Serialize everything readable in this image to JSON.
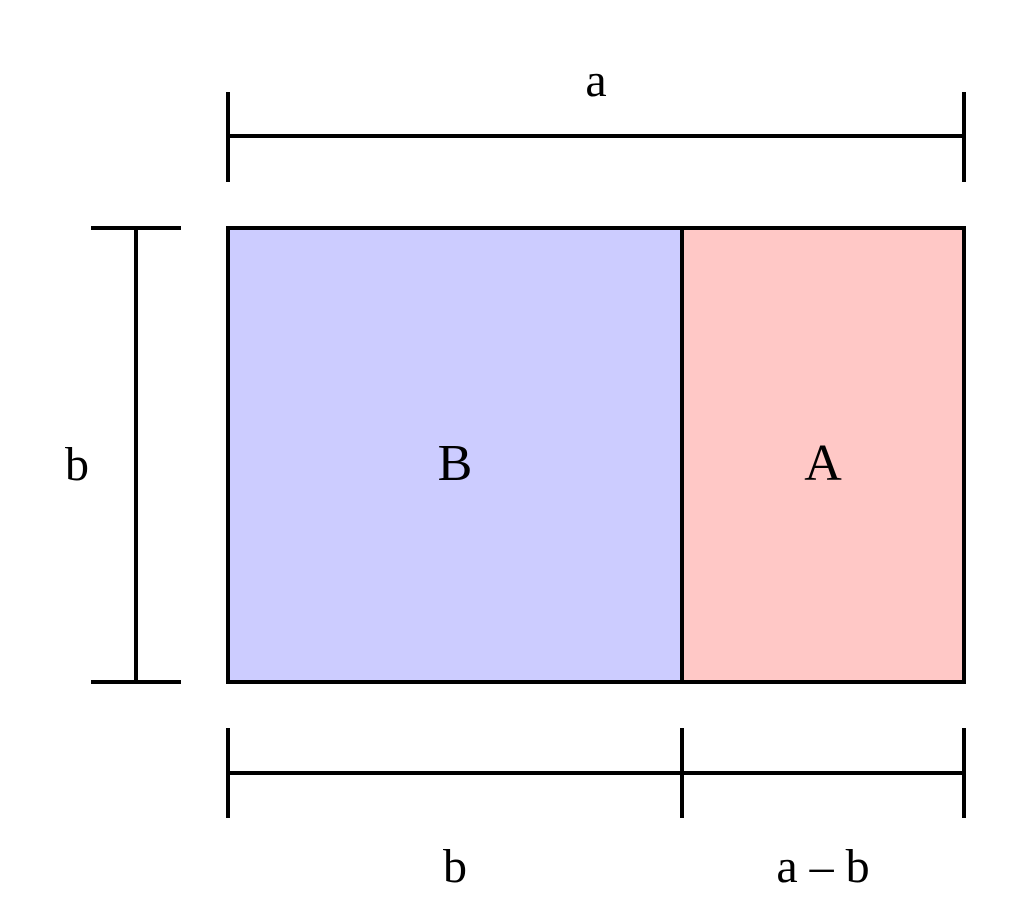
{
  "diagram": {
    "top_dimension": {
      "label": "a"
    },
    "left_dimension": {
      "label": "b"
    },
    "bottom_left_dimension": {
      "label": "b"
    },
    "bottom_right_dimension": {
      "label": "a – b"
    },
    "regions": [
      {
        "id": "B",
        "label": "B",
        "color": "#ccccff"
      },
      {
        "id": "A",
        "label": "A",
        "color": "#ffc8c6"
      }
    ],
    "stroke_color": "#000000"
  }
}
